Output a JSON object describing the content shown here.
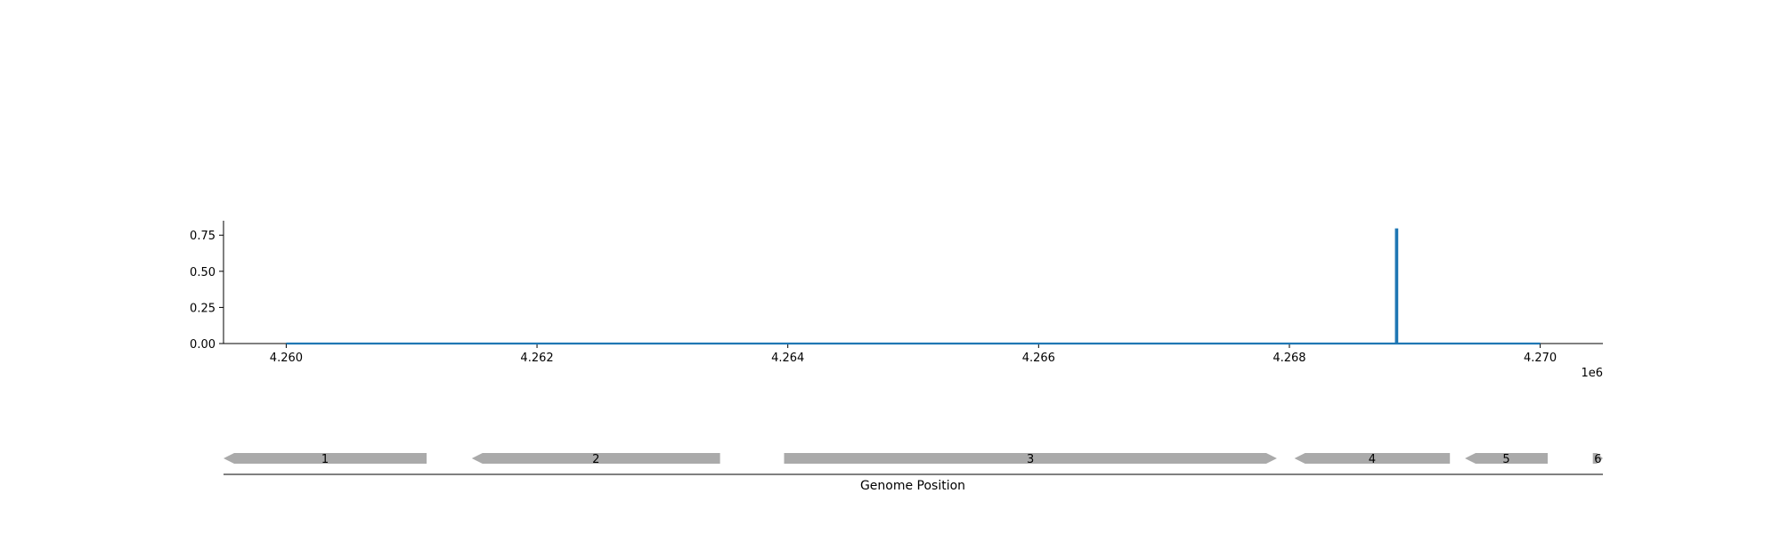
{
  "chart_data": [
    {
      "type": "line",
      "title": "",
      "xlabel": "",
      "ylabel": "",
      "x_offset_label": "1e6",
      "xlim": [
        4259500,
        4270500
      ],
      "ylim": [
        0,
        0.85
      ],
      "x_ticks": [
        4260000,
        4262000,
        4264000,
        4266000,
        4268000,
        4270000
      ],
      "x_tick_labels": [
        "4.260",
        "4.262",
        "4.264",
        "4.266",
        "4.268",
        "4.270"
      ],
      "y_ticks": [
        0.0,
        0.25,
        0.5,
        0.75
      ],
      "y_tick_labels": [
        "0.00",
        "0.25",
        "0.50",
        "0.75"
      ],
      "grid": false,
      "color": "#1f77b4",
      "series": [
        {
          "x": [
            4260000,
            4268850,
            4268850,
            4268860,
            4268860,
            4270000
          ],
          "y": [
            0,
            0,
            0.79,
            0.79,
            0,
            0
          ]
        }
      ]
    },
    {
      "type": "gene-track",
      "xlabel": "Genome Position",
      "xlim": [
        4259500,
        4270500
      ],
      "color": "#aaaaaa",
      "genes": [
        {
          "label": "1",
          "start": 4259500,
          "end": 4261120,
          "strand": "-"
        },
        {
          "label": "2",
          "start": 4261480,
          "end": 4263460,
          "strand": "-"
        },
        {
          "label": "3",
          "start": 4263970,
          "end": 4267900,
          "strand": "+"
        },
        {
          "label": "4",
          "start": 4268040,
          "end": 4269280,
          "strand": "-"
        },
        {
          "label": "5",
          "start": 4269400,
          "end": 4270060,
          "strand": "-"
        },
        {
          "label": "6",
          "start": 4270420,
          "end": 4270500,
          "strand": "+"
        }
      ]
    }
  ]
}
